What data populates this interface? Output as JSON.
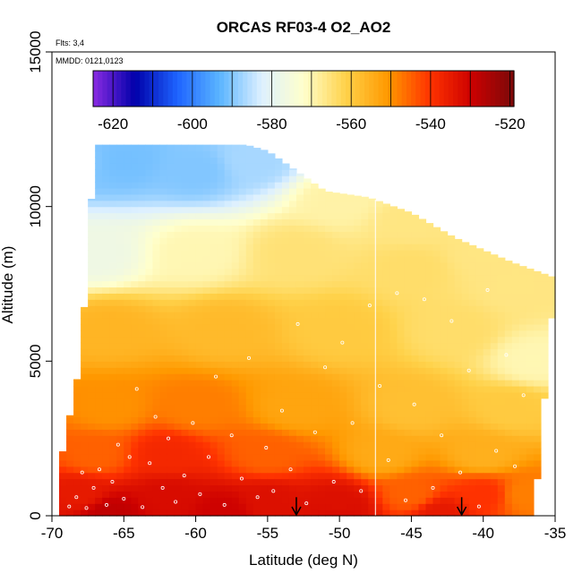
{
  "chart_data": {
    "type": "heatmap",
    "title": "ORCAS RF03-4 O2_AO2",
    "xlabel": "Latitude (deg N)",
    "ylabel": "Altitude (m)",
    "xlim": [
      -70,
      -35
    ],
    "ylim": [
      0,
      15000
    ],
    "x_ticks": [
      -70,
      -65,
      -60,
      -55,
      -50,
      -45,
      -40,
      -35
    ],
    "y_ticks": [
      0,
      5000,
      10000,
      15000
    ],
    "notes": {
      "flights": "Flts: 3,4",
      "dates": "MMDD: 0121,0123"
    },
    "colorbar": {
      "range": [
        -625,
        -519
      ],
      "ticks": [
        -620,
        -600,
        -580,
        -560,
        -540,
        -520
      ],
      "colors": [
        "#8a2be2",
        "#0000aa",
        "#1e64ff",
        "#5ab4ff",
        "#ddf0ff",
        "#ffffcc",
        "#ffd24a",
        "#ff9900",
        "#ff3300",
        "#cc0000",
        "#7a0a0a"
      ]
    },
    "grid": false,
    "vertical_line_latitude": -47.5,
    "arrow_latitudes": [
      -53,
      -41.5
    ],
    "field": {
      "upper_boundary_m": [
        [
          -69.5,
          1500
        ],
        [
          -68,
          5000
        ],
        [
          -67.5,
          8500
        ],
        [
          -67,
          12000
        ],
        [
          -56.5,
          12000
        ],
        [
          -55,
          11800
        ],
        [
          -51,
          10500
        ],
        [
          -48,
          10300
        ],
        [
          -45,
          9800
        ],
        [
          -42,
          9000
        ],
        [
          -38,
          8200
        ],
        [
          -35,
          7700
        ]
      ],
      "lower_boundary_m": [
        [
          -69.5,
          0
        ],
        [
          -36,
          0
        ]
      ],
      "right_edge": [
        [
          -35,
          7700
        ],
        [
          -36.5,
          0
        ]
      ],
      "anchors": [
        {
          "lat": -68,
          "alt": 11500,
          "value": -590
        },
        {
          "lat": -65,
          "alt": 11500,
          "value": -591
        },
        {
          "lat": -60,
          "alt": 11200,
          "value": -590
        },
        {
          "lat": -56,
          "alt": 11500,
          "value": -587
        },
        {
          "lat": -50,
          "alt": 10200,
          "value": -569
        },
        {
          "lat": -45,
          "alt": 9500,
          "value": -566
        },
        {
          "lat": -40,
          "alt": 8500,
          "value": -566
        },
        {
          "lat": -67,
          "alt": 8500,
          "value": -577
        },
        {
          "lat": -60,
          "alt": 8500,
          "value": -570
        },
        {
          "lat": -53,
          "alt": 8500,
          "value": -565
        },
        {
          "lat": -45,
          "alt": 8000,
          "value": -564
        },
        {
          "lat": -38,
          "alt": 7500,
          "value": -566
        },
        {
          "lat": -66,
          "alt": 6000,
          "value": -556
        },
        {
          "lat": -58,
          "alt": 6000,
          "value": -557
        },
        {
          "lat": -50,
          "alt": 6000,
          "value": -560
        },
        {
          "lat": -42,
          "alt": 6000,
          "value": -564
        },
        {
          "lat": -36.5,
          "alt": 5000,
          "value": -570
        },
        {
          "lat": -66,
          "alt": 3500,
          "value": -550
        },
        {
          "lat": -60,
          "alt": 3500,
          "value": -548
        },
        {
          "lat": -53,
          "alt": 3500,
          "value": -553
        },
        {
          "lat": -45,
          "alt": 3500,
          "value": -558
        },
        {
          "lat": -38,
          "alt": 3500,
          "value": -560
        },
        {
          "lat": -67,
          "alt": 2000,
          "value": -545
        },
        {
          "lat": -62,
          "alt": 2000,
          "value": -538
        },
        {
          "lat": -55,
          "alt": 2000,
          "value": -545
        },
        {
          "lat": -47,
          "alt": 2000,
          "value": -554
        },
        {
          "lat": -40,
          "alt": 2000,
          "value": -555
        },
        {
          "lat": -68,
          "alt": 700,
          "value": -535
        },
        {
          "lat": -62,
          "alt": 600,
          "value": -532
        },
        {
          "lat": -55,
          "alt": 500,
          "value": -533
        },
        {
          "lat": -50,
          "alt": 400,
          "value": -533
        },
        {
          "lat": -45,
          "alt": 700,
          "value": -545
        },
        {
          "lat": -40,
          "alt": 700,
          "value": -540
        },
        {
          "lat": -37,
          "alt": 700,
          "value": -548
        },
        {
          "lat": -66,
          "alt": 100,
          "value": -528
        },
        {
          "lat": -58,
          "alt": 100,
          "value": -530
        },
        {
          "lat": -50,
          "alt": 100,
          "value": -532
        },
        {
          "lat": -43,
          "alt": 100,
          "value": -535
        }
      ]
    },
    "sample_points": [
      [
        -68.8,
        300
      ],
      [
        -68.3,
        600
      ],
      [
        -67.9,
        1400
      ],
      [
        -67.6,
        250
      ],
      [
        -67.1,
        900
      ],
      [
        -66.7,
        1500
      ],
      [
        -66.2,
        350
      ],
      [
        -65.8,
        1100
      ],
      [
        -65.4,
        2300
      ],
      [
        -65,
        550
      ],
      [
        -64.6,
        1900
      ],
      [
        -64.1,
        4100
      ],
      [
        -63.7,
        280
      ],
      [
        -63.2,
        1700
      ],
      [
        -62.8,
        3200
      ],
      [
        -62.3,
        900
      ],
      [
        -61.9,
        2500
      ],
      [
        -61.4,
        450
      ],
      [
        -60.8,
        1300
      ],
      [
        -60.2,
        3000
      ],
      [
        -59.7,
        700
      ],
      [
        -59.1,
        1900
      ],
      [
        -58.6,
        4500
      ],
      [
        -58,
        350
      ],
      [
        -57.5,
        2600
      ],
      [
        -56.8,
        1200
      ],
      [
        -56.3,
        5100
      ],
      [
        -55.7,
        600
      ],
      [
        -55.1,
        2200
      ],
      [
        -54.6,
        800
      ],
      [
        -54,
        3400
      ],
      [
        -53.4,
        1500
      ],
      [
        -52.9,
        6200
      ],
      [
        -52.3,
        400
      ],
      [
        -51.7,
        2700
      ],
      [
        -51,
        4800
      ],
      [
        -50.4,
        1100
      ],
      [
        -49.8,
        5600
      ],
      [
        -49.1,
        3000
      ],
      [
        -48.5,
        800
      ],
      [
        -47.9,
        6800
      ],
      [
        -47.2,
        4200
      ],
      [
        -46.6,
        1800
      ],
      [
        -46,
        7200
      ],
      [
        -45.4,
        500
      ],
      [
        -44.8,
        3600
      ],
      [
        -44.1,
        7000
      ],
      [
        -43.5,
        900
      ],
      [
        -42.9,
        2600
      ],
      [
        -42.2,
        6300
      ],
      [
        -41.6,
        1400
      ],
      [
        -41,
        4700
      ],
      [
        -40.3,
        300
      ],
      [
        -39.7,
        7300
      ],
      [
        -39.1,
        2100
      ],
      [
        -38.4,
        5200
      ],
      [
        -37.8,
        1600
      ],
      [
        -37.2,
        3900
      ]
    ]
  }
}
